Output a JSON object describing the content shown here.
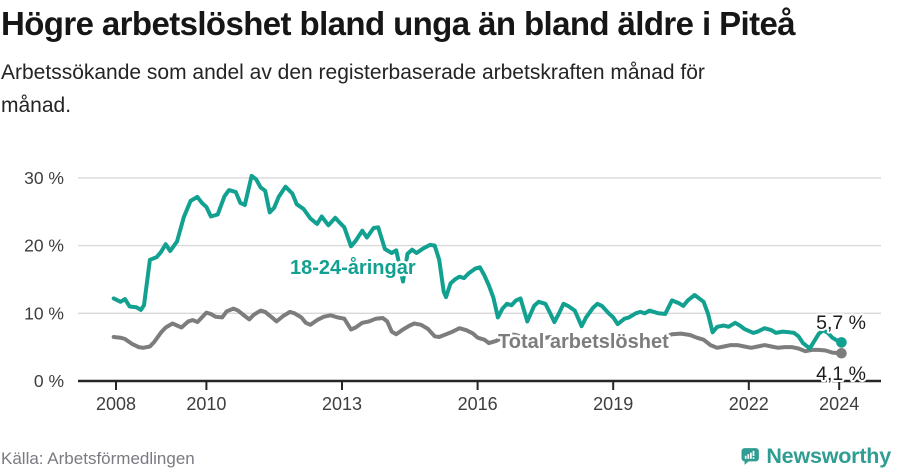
{
  "header": {
    "title": "Högre arbetslöshet bland unga än bland äldre i Piteå",
    "subtitle_line1": "Arbetssökande som andel av den registerbaserade arbetskraften månad för",
    "subtitle_line2": "månad."
  },
  "chart_data": {
    "type": "line",
    "title": "Högre arbetslöshet bland unga än bland äldre i Piteå",
    "subtitle": "Arbetssökande som andel av den registerbaserade arbetskraften månad för månad.",
    "unit": "%",
    "grid": true,
    "x_axis": {
      "range": [
        2007.2,
        2024.9
      ],
      "ticks": [
        {
          "value": 2008,
          "label": "2008"
        },
        {
          "value": 2010,
          "label": "2010"
        },
        {
          "value": 2013,
          "label": "2013"
        },
        {
          "value": 2016,
          "label": "2016"
        },
        {
          "value": 2019,
          "label": "2019"
        },
        {
          "value": 2022,
          "label": "2022"
        },
        {
          "value": 2024,
          "label": "2024"
        }
      ]
    },
    "y_axis": {
      "range": [
        0,
        31
      ],
      "ticks": [
        {
          "value": 0,
          "label": "0 %"
        },
        {
          "value": 10,
          "label": "10 %"
        },
        {
          "value": 20,
          "label": "20 %"
        },
        {
          "value": 30,
          "label": "30 %"
        }
      ]
    },
    "series": [
      {
        "name": "Total arbetslöshet",
        "color": "#7d7d7d",
        "end_label": "4,1 %",
        "end_value": 4.1,
        "points": [
          [
            2007.95,
            6.5
          ],
          [
            2008.1,
            6.4
          ],
          [
            2008.2,
            6.2
          ],
          [
            2008.35,
            5.5
          ],
          [
            2008.5,
            5.0
          ],
          [
            2008.6,
            4.9
          ],
          [
            2008.75,
            5.1
          ],
          [
            2008.85,
            5.8
          ],
          [
            2009.0,
            7.2
          ],
          [
            2009.1,
            7.9
          ],
          [
            2009.25,
            8.5
          ],
          [
            2009.35,
            8.2
          ],
          [
            2009.45,
            7.9
          ],
          [
            2009.6,
            8.8
          ],
          [
            2009.7,
            9.0
          ],
          [
            2009.8,
            8.7
          ],
          [
            2009.9,
            9.4
          ],
          [
            2010.0,
            10.1
          ],
          [
            2010.1,
            9.9
          ],
          [
            2010.2,
            9.5
          ],
          [
            2010.35,
            9.4
          ],
          [
            2010.45,
            10.3
          ],
          [
            2010.6,
            10.7
          ],
          [
            2010.7,
            10.4
          ],
          [
            2010.85,
            9.6
          ],
          [
            2010.95,
            9.1
          ],
          [
            2011.05,
            9.8
          ],
          [
            2011.2,
            10.4
          ],
          [
            2011.3,
            10.2
          ],
          [
            2011.45,
            9.4
          ],
          [
            2011.55,
            8.8
          ],
          [
            2011.7,
            9.6
          ],
          [
            2011.85,
            10.2
          ],
          [
            2011.95,
            10.0
          ],
          [
            2012.1,
            9.4
          ],
          [
            2012.2,
            8.6
          ],
          [
            2012.3,
            8.3
          ],
          [
            2012.45,
            9.0
          ],
          [
            2012.6,
            9.5
          ],
          [
            2012.75,
            9.7
          ],
          [
            2012.9,
            9.4
          ],
          [
            2013.05,
            9.2
          ],
          [
            2013.2,
            7.6
          ],
          [
            2013.3,
            7.9
          ],
          [
            2013.45,
            8.6
          ],
          [
            2013.6,
            8.8
          ],
          [
            2013.75,
            9.2
          ],
          [
            2013.9,
            9.3
          ],
          [
            2014.0,
            8.8
          ],
          [
            2014.1,
            7.3
          ],
          [
            2014.2,
            6.9
          ],
          [
            2014.35,
            7.6
          ],
          [
            2014.5,
            8.2
          ],
          [
            2014.6,
            8.5
          ],
          [
            2014.75,
            8.3
          ],
          [
            2014.9,
            7.7
          ],
          [
            2015.05,
            6.6
          ],
          [
            2015.15,
            6.5
          ],
          [
            2015.3,
            6.9
          ],
          [
            2015.45,
            7.3
          ],
          [
            2015.6,
            7.8
          ],
          [
            2015.75,
            7.5
          ],
          [
            2015.9,
            7.0
          ],
          [
            2016.0,
            6.4
          ],
          [
            2016.15,
            6.1
          ],
          [
            2016.25,
            5.6
          ],
          [
            2016.4,
            5.9
          ],
          [
            2016.55,
            6.4
          ],
          [
            2016.7,
            6.9
          ],
          [
            2016.85,
            6.8
          ],
          [
            2017.0,
            6.4
          ],
          [
            2017.15,
            5.8
          ],
          [
            2017.3,
            6.0
          ],
          [
            2017.45,
            6.3
          ],
          [
            2017.6,
            6.5
          ],
          [
            2017.75,
            6.4
          ],
          [
            2017.9,
            6.0
          ],
          [
            2018.05,
            5.6
          ],
          [
            2018.2,
            5.3
          ],
          [
            2018.35,
            5.6
          ],
          [
            2018.5,
            6.0
          ],
          [
            2018.65,
            6.2
          ],
          [
            2018.8,
            6.1
          ],
          [
            2018.95,
            5.9
          ],
          [
            2019.1,
            5.5
          ],
          [
            2019.25,
            5.6
          ],
          [
            2019.4,
            5.9
          ],
          [
            2019.55,
            6.1
          ],
          [
            2019.7,
            6.3
          ],
          [
            2019.85,
            6.2
          ],
          [
            2020.0,
            6.3
          ],
          [
            2020.15,
            6.6
          ],
          [
            2020.3,
            6.9
          ],
          [
            2020.5,
            7.0
          ],
          [
            2020.7,
            6.8
          ],
          [
            2020.85,
            6.4
          ],
          [
            2021.0,
            6.1
          ],
          [
            2021.15,
            5.3
          ],
          [
            2021.3,
            4.9
          ],
          [
            2021.45,
            5.1
          ],
          [
            2021.6,
            5.3
          ],
          [
            2021.75,
            5.3
          ],
          [
            2021.9,
            5.1
          ],
          [
            2022.05,
            4.9
          ],
          [
            2022.2,
            5.1
          ],
          [
            2022.35,
            5.3
          ],
          [
            2022.5,
            5.1
          ],
          [
            2022.65,
            4.9
          ],
          [
            2022.8,
            5.0
          ],
          [
            2022.95,
            5.0
          ],
          [
            2023.1,
            4.8
          ],
          [
            2023.25,
            4.4
          ],
          [
            2023.4,
            4.6
          ],
          [
            2023.55,
            4.6
          ],
          [
            2023.7,
            4.5
          ],
          [
            2023.85,
            4.2
          ],
          [
            2024.05,
            4.1
          ]
        ]
      },
      {
        "name": "18-24-åringar",
        "color": "#12a091",
        "end_label": "5,7 %",
        "end_value": 5.7,
        "points": [
          [
            2007.95,
            12.2
          ],
          [
            2008.1,
            11.7
          ],
          [
            2008.2,
            12.1
          ],
          [
            2008.3,
            11.0
          ],
          [
            2008.45,
            10.9
          ],
          [
            2008.55,
            10.5
          ],
          [
            2008.62,
            11.2
          ],
          [
            2008.75,
            17.9
          ],
          [
            2008.9,
            18.3
          ],
          [
            2009.0,
            19.1
          ],
          [
            2009.1,
            20.2
          ],
          [
            2009.2,
            19.2
          ],
          [
            2009.35,
            20.6
          ],
          [
            2009.5,
            24.2
          ],
          [
            2009.65,
            26.6
          ],
          [
            2009.8,
            27.2
          ],
          [
            2009.9,
            26.3
          ],
          [
            2010.0,
            25.7
          ],
          [
            2010.1,
            24.3
          ],
          [
            2010.25,
            24.6
          ],
          [
            2010.4,
            27.3
          ],
          [
            2010.5,
            28.2
          ],
          [
            2010.65,
            27.9
          ],
          [
            2010.75,
            26.3
          ],
          [
            2010.85,
            26.0
          ],
          [
            2011.0,
            30.3
          ],
          [
            2011.1,
            29.8
          ],
          [
            2011.2,
            28.6
          ],
          [
            2011.3,
            28.1
          ],
          [
            2011.4,
            24.9
          ],
          [
            2011.5,
            25.6
          ],
          [
            2011.6,
            27.2
          ],
          [
            2011.75,
            28.7
          ],
          [
            2011.9,
            27.7
          ],
          [
            2012.0,
            26.1
          ],
          [
            2012.15,
            25.4
          ],
          [
            2012.3,
            24.0
          ],
          [
            2012.45,
            23.2
          ],
          [
            2012.55,
            24.3
          ],
          [
            2012.7,
            23.0
          ],
          [
            2012.85,
            24.1
          ],
          [
            2012.95,
            23.4
          ],
          [
            2013.05,
            22.7
          ],
          [
            2013.2,
            19.9
          ],
          [
            2013.3,
            20.7
          ],
          [
            2013.45,
            22.2
          ],
          [
            2013.55,
            21.2
          ],
          [
            2013.7,
            22.6
          ],
          [
            2013.8,
            22.7
          ],
          [
            2013.95,
            19.5
          ],
          [
            2014.1,
            18.9
          ],
          [
            2014.2,
            19.3
          ],
          [
            2014.35,
            14.7
          ],
          [
            2014.45,
            18.8
          ],
          [
            2014.55,
            19.4
          ],
          [
            2014.65,
            18.9
          ],
          [
            2014.8,
            19.6
          ],
          [
            2014.95,
            20.1
          ],
          [
            2015.05,
            20.0
          ],
          [
            2015.15,
            17.9
          ],
          [
            2015.25,
            13.2
          ],
          [
            2015.3,
            12.4
          ],
          [
            2015.4,
            14.4
          ],
          [
            2015.5,
            15.0
          ],
          [
            2015.6,
            15.4
          ],
          [
            2015.7,
            15.2
          ],
          [
            2015.8,
            15.9
          ],
          [
            2015.95,
            16.6
          ],
          [
            2016.05,
            16.8
          ],
          [
            2016.15,
            15.6
          ],
          [
            2016.25,
            14.1
          ],
          [
            2016.35,
            12.3
          ],
          [
            2016.45,
            9.4
          ],
          [
            2016.55,
            10.7
          ],
          [
            2016.65,
            11.4
          ],
          [
            2016.75,
            11.2
          ],
          [
            2016.85,
            11.9
          ],
          [
            2016.95,
            12.2
          ],
          [
            2017.1,
            8.8
          ],
          [
            2017.25,
            11.1
          ],
          [
            2017.35,
            11.7
          ],
          [
            2017.5,
            11.4
          ],
          [
            2017.6,
            10.1
          ],
          [
            2017.7,
            8.7
          ],
          [
            2017.8,
            10.0
          ],
          [
            2017.9,
            11.4
          ],
          [
            2018.0,
            11.1
          ],
          [
            2018.15,
            10.4
          ],
          [
            2018.3,
            8.1
          ],
          [
            2018.4,
            9.4
          ],
          [
            2018.55,
            10.8
          ],
          [
            2018.65,
            11.4
          ],
          [
            2018.75,
            11.1
          ],
          [
            2018.9,
            10.0
          ],
          [
            2019.0,
            9.4
          ],
          [
            2019.1,
            8.4
          ],
          [
            2019.25,
            9.2
          ],
          [
            2019.35,
            9.4
          ],
          [
            2019.5,
            10.0
          ],
          [
            2019.6,
            10.2
          ],
          [
            2019.7,
            10.0
          ],
          [
            2019.8,
            10.4
          ],
          [
            2019.9,
            10.2
          ],
          [
            2020.0,
            10.0
          ],
          [
            2020.15,
            9.9
          ],
          [
            2020.3,
            11.9
          ],
          [
            2020.45,
            11.5
          ],
          [
            2020.55,
            11.1
          ],
          [
            2020.65,
            11.9
          ],
          [
            2020.8,
            12.7
          ],
          [
            2020.9,
            12.2
          ],
          [
            2021.0,
            11.7
          ],
          [
            2021.1,
            9.9
          ],
          [
            2021.2,
            7.2
          ],
          [
            2021.3,
            8.0
          ],
          [
            2021.45,
            8.2
          ],
          [
            2021.55,
            8.0
          ],
          [
            2021.7,
            8.6
          ],
          [
            2021.8,
            8.2
          ],
          [
            2021.9,
            7.7
          ],
          [
            2022.0,
            7.4
          ],
          [
            2022.1,
            7.1
          ],
          [
            2022.2,
            7.3
          ],
          [
            2022.35,
            7.8
          ],
          [
            2022.5,
            7.5
          ],
          [
            2022.6,
            7.1
          ],
          [
            2022.75,
            7.3
          ],
          [
            2022.9,
            7.2
          ],
          [
            2023.0,
            7.1
          ],
          [
            2023.1,
            6.6
          ],
          [
            2023.2,
            5.6
          ],
          [
            2023.35,
            4.8
          ],
          [
            2023.45,
            5.9
          ],
          [
            2023.55,
            7.0
          ],
          [
            2023.65,
            7.5
          ],
          [
            2023.75,
            7.1
          ],
          [
            2023.85,
            6.4
          ],
          [
            2023.95,
            6.0
          ],
          [
            2024.05,
            5.7
          ]
        ]
      }
    ],
    "legend_position": "inline-labels"
  },
  "footer": {
    "source": "Källa: Arbetsförmedlingen",
    "brand": "Newsworthy"
  },
  "colors": {
    "accent_teal": "#12a091",
    "line_gray": "#7d7d7d",
    "grid": "#d9d9d9",
    "axis": "#262626",
    "axis_text": "#3e3e3e",
    "value_label_text": "#1c1c1c",
    "brand_teal": "#2f9d91"
  }
}
